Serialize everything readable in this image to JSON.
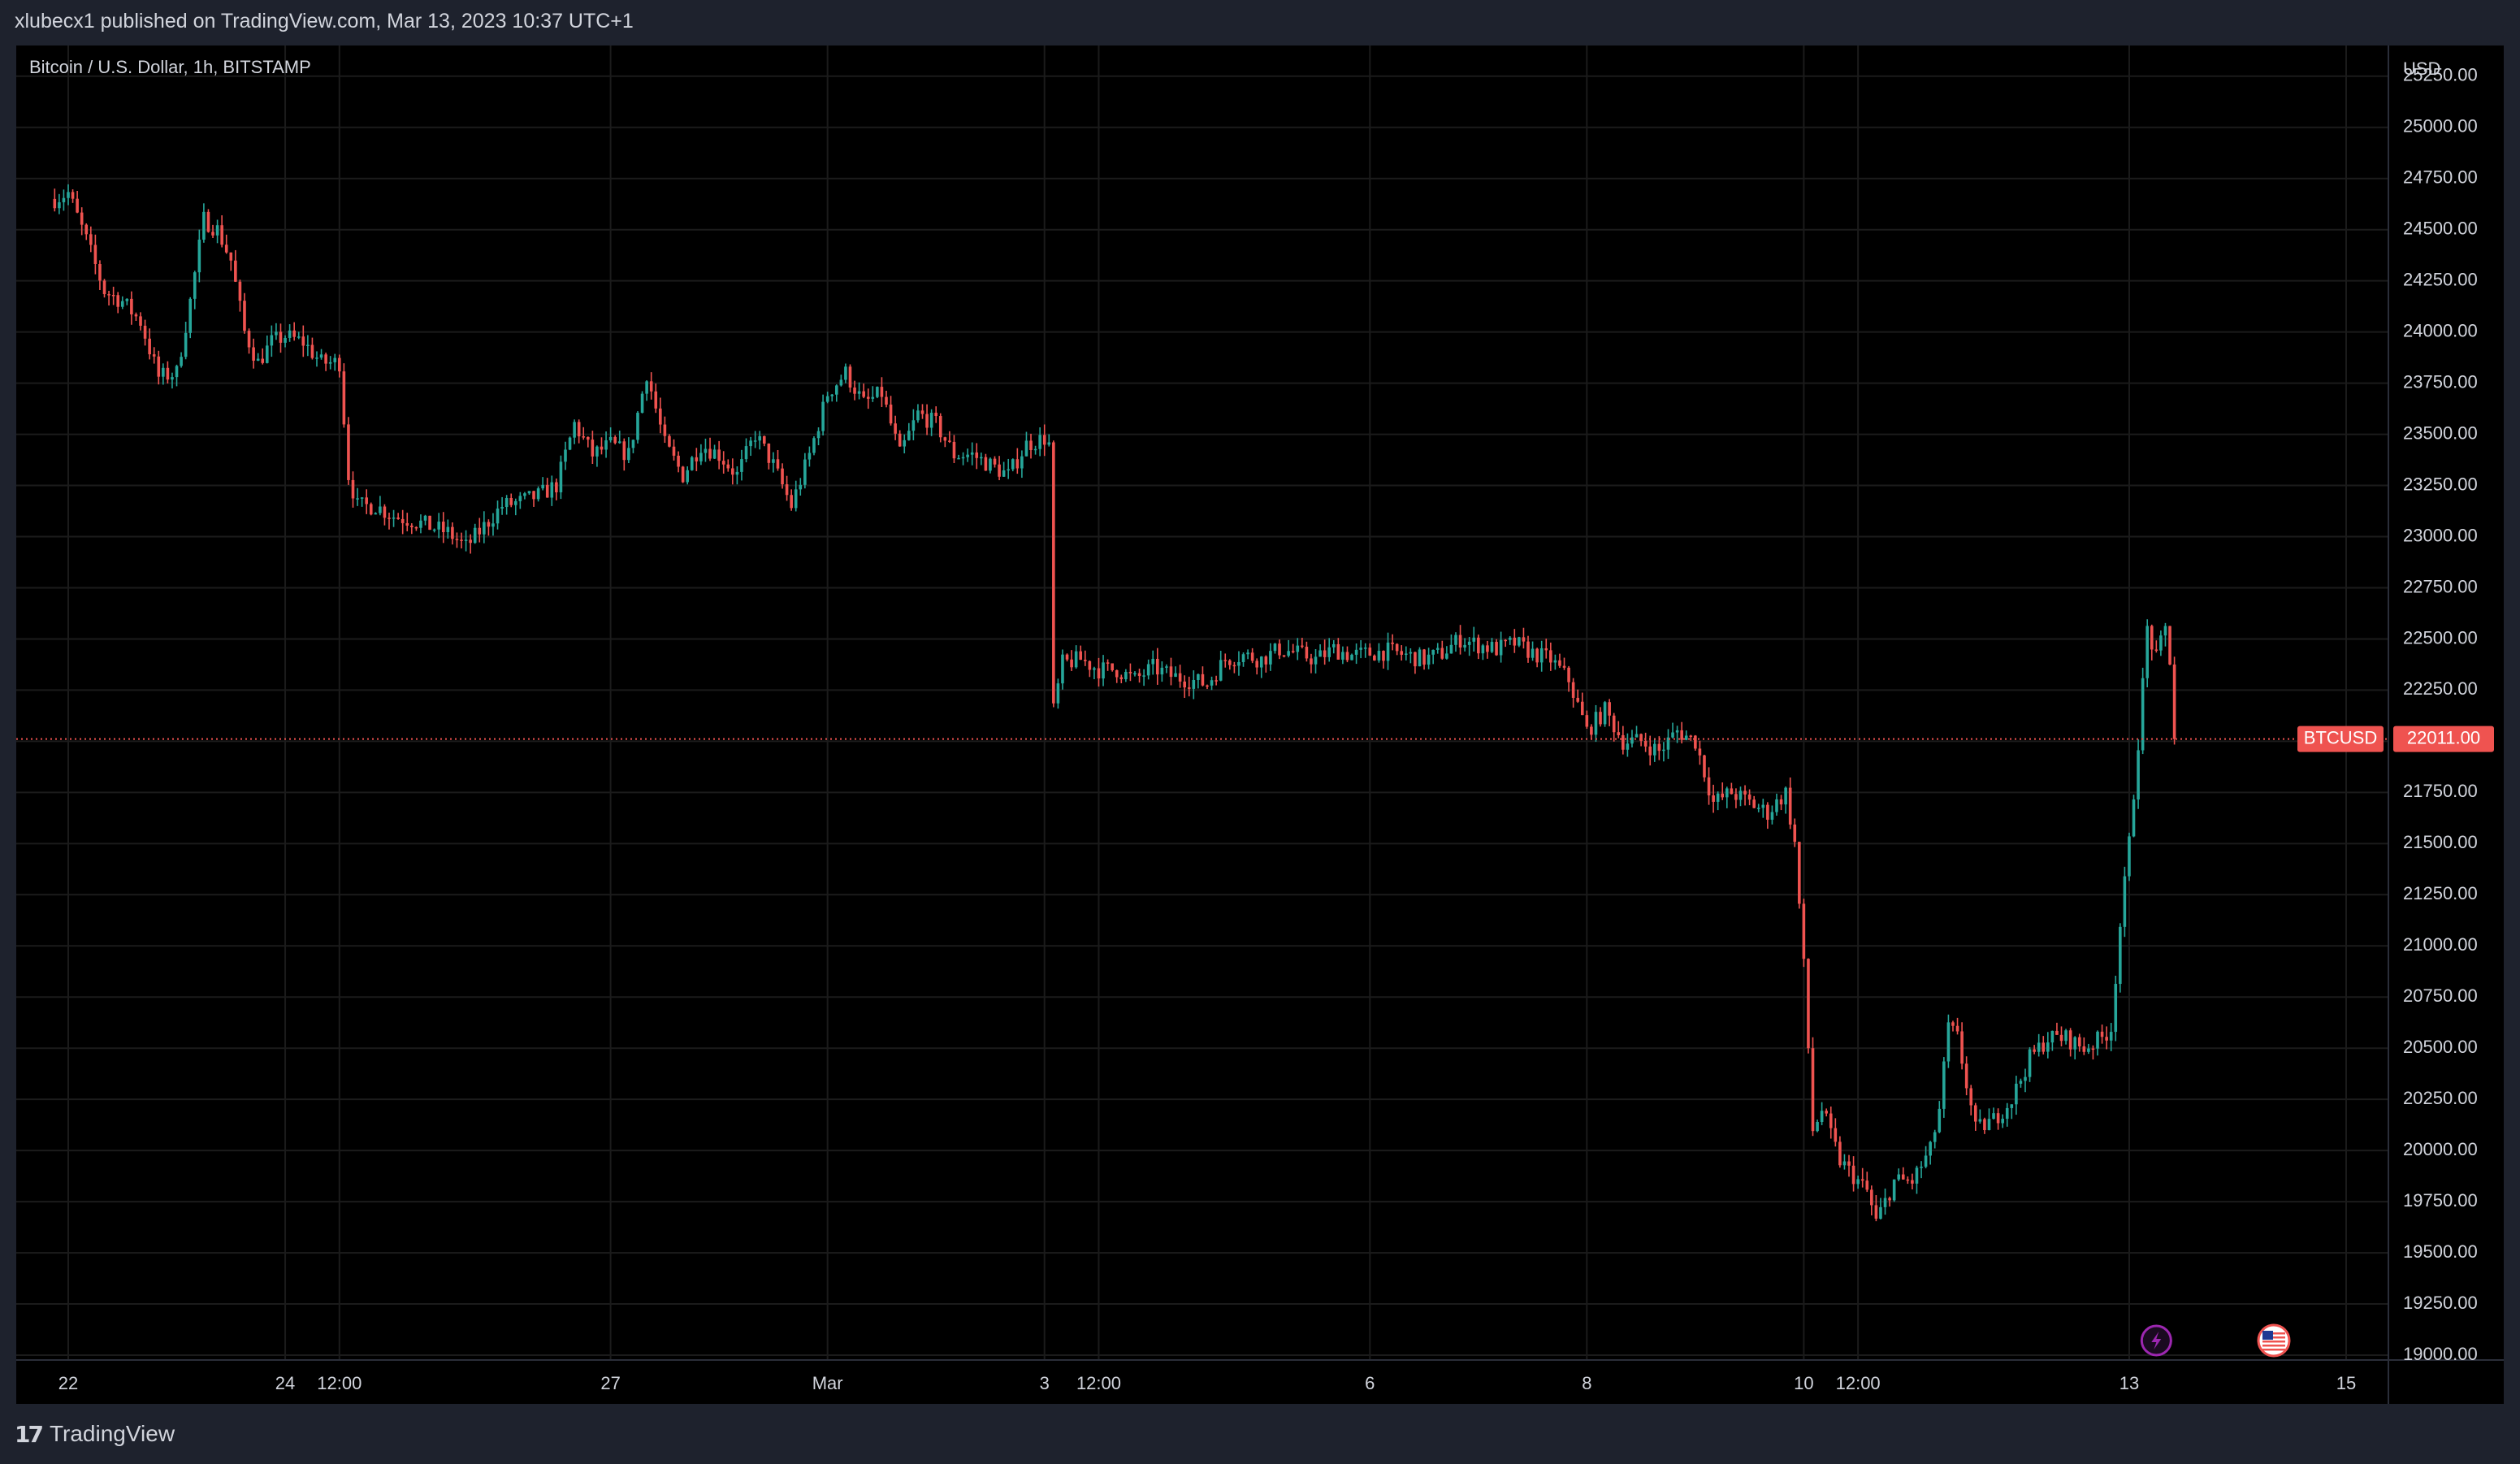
{
  "header": {
    "publish_line": "xlubecx1 published on TradingView.com, Mar 13, 2023 10:37 UTC+1"
  },
  "chart": {
    "symbol_legend": "Bitcoin / U.S. Dollar, 1h, BITSTAMP"
  },
  "footer": {
    "brand": "TradingView"
  },
  "icons": {
    "event_lightning": "lightning-icon",
    "event_flag": "us-flag-icon",
    "logo": "tradingview-logo-icon"
  },
  "colors": {
    "background": "#000000",
    "frame": "#1e222d",
    "up": "#26a69a",
    "down": "#ef5350",
    "grid": "#1b1b1b",
    "text": "#d1d4dc",
    "price_label_bg": "#ef5350",
    "event_purple": "#9c27b0"
  },
  "chart_data": {
    "type": "candlestick",
    "symbol": "BTCUSD",
    "title": "Bitcoin / U.S. Dollar, 1h, BITSTAMP",
    "ylabel": "USD",
    "ylim": [
      19000,
      25400
    ],
    "y_ticks": [
      "25250.00",
      "25000.00",
      "24750.00",
      "24500.00",
      "24250.00",
      "24000.00",
      "23750.00",
      "23500.00",
      "23250.00",
      "23000.00",
      "22750.00",
      "22500.00",
      "22250.00",
      "22000.00",
      "21750.00",
      "21500.00",
      "21250.00",
      "21000.00",
      "20750.00",
      "20500.00",
      "20250.00",
      "20000.00",
      "19750.00",
      "19500.00",
      "19250.00",
      "19000.00"
    ],
    "x_ticks": [
      {
        "label": "22",
        "x": "2023-02-22T00:00"
      },
      {
        "label": "24",
        "x": "2023-02-24T00:00"
      },
      {
        "label": "12:00",
        "x": "2023-02-24T12:00"
      },
      {
        "label": "27",
        "x": "2023-02-27T00:00"
      },
      {
        "label": "Mar",
        "x": "2023-03-01T00:00"
      },
      {
        "label": "3",
        "x": "2023-03-03T00:00"
      },
      {
        "label": "12:00",
        "x": "2023-03-03T12:00"
      },
      {
        "label": "6",
        "x": "2023-03-06T00:00"
      },
      {
        "label": "8",
        "x": "2023-03-08T00:00"
      },
      {
        "label": "10",
        "x": "2023-03-10T00:00"
      },
      {
        "label": "12:00",
        "x": "2023-03-10T12:00"
      },
      {
        "label": "13",
        "x": "2023-03-13T00:00"
      },
      {
        "label": "15",
        "x": "2023-03-15T00:00"
      }
    ],
    "last_price": 22011.0,
    "last_price_label": "22011.00",
    "symbol_label": "BTCUSD",
    "price_path": [
      [
        "2023-02-21T21:00",
        24650
      ],
      [
        "2023-02-22T00:00",
        24680
      ],
      [
        "2023-02-22T04:00",
        24450
      ],
      [
        "2023-02-22T08:00",
        24200
      ],
      [
        "2023-02-22T12:00",
        24150
      ],
      [
        "2023-02-22T16:00",
        24050
      ],
      [
        "2023-02-22T20:00",
        23780
      ],
      [
        "2023-02-23T00:00",
        23800
      ],
      [
        "2023-02-23T03:00",
        24150
      ],
      [
        "2023-02-23T06:00",
        24550
      ],
      [
        "2023-02-23T09:00",
        24500
      ],
      [
        "2023-02-23T12:00",
        24350
      ],
      [
        "2023-02-23T15:00",
        24000
      ],
      [
        "2023-02-23T18:00",
        23850
      ],
      [
        "2023-02-23T21:00",
        23950
      ],
      [
        "2023-02-24T00:00",
        23980
      ],
      [
        "2023-02-24T04:00",
        23950
      ],
      [
        "2023-02-24T08:00",
        23850
      ],
      [
        "2023-02-24T12:00",
        23850
      ],
      [
        "2023-02-24T14:00",
        23300
      ],
      [
        "2023-02-24T16:00",
        23150
      ],
      [
        "2023-02-24T20:00",
        23150
      ],
      [
        "2023-02-25T00:00",
        23100
      ],
      [
        "2023-02-25T04:00",
        23080
      ],
      [
        "2023-02-25T08:00",
        23050
      ],
      [
        "2023-02-25T12:00",
        23020
      ],
      [
        "2023-02-25T16:00",
        22950
      ],
      [
        "2023-02-25T20:00",
        23050
      ],
      [
        "2023-02-26T00:00",
        23150
      ],
      [
        "2023-02-26T04:00",
        23170
      ],
      [
        "2023-02-26T08:00",
        23200
      ],
      [
        "2023-02-26T12:00",
        23250
      ],
      [
        "2023-02-26T16:00",
        23550
      ],
      [
        "2023-02-26T20:00",
        23400
      ],
      [
        "2023-02-27T00:00",
        23450
      ],
      [
        "2023-02-27T04:00",
        23400
      ],
      [
        "2023-02-27T08:00",
        23800
      ],
      [
        "2023-02-27T12:00",
        23450
      ],
      [
        "2023-02-27T16:00",
        23300
      ],
      [
        "2023-02-27T20:00",
        23450
      ],
      [
        "2023-02-28T00:00",
        23400
      ],
      [
        "2023-02-28T04:00",
        23300
      ],
      [
        "2023-02-28T08:00",
        23500
      ],
      [
        "2023-02-28T12:00",
        23350
      ],
      [
        "2023-02-28T16:00",
        23150
      ],
      [
        "2023-02-28T20:00",
        23400
      ],
      [
        "2023-03-01T00:00",
        23700
      ],
      [
        "2023-03-01T04:00",
        23800
      ],
      [
        "2023-03-01T08:00",
        23650
      ],
      [
        "2023-03-01T12:00",
        23700
      ],
      [
        "2023-03-01T16:00",
        23400
      ],
      [
        "2023-03-01T20:00",
        23600
      ],
      [
        "2023-03-02T00:00",
        23550
      ],
      [
        "2023-03-02T04:00",
        23400
      ],
      [
        "2023-03-02T08:00",
        23400
      ],
      [
        "2023-03-02T12:00",
        23350
      ],
      [
        "2023-03-02T16:00",
        23300
      ],
      [
        "2023-03-02T20:00",
        23450
      ],
      [
        "2023-03-03T00:00",
        23480
      ],
      [
        "2023-03-03T01:00",
        23450
      ],
      [
        "2023-03-03T02:00",
        22150
      ],
      [
        "2023-03-03T04:00",
        22380
      ],
      [
        "2023-03-03T08:00",
        22400
      ],
      [
        "2023-03-03T12:00",
        22350
      ],
      [
        "2023-03-03T16:00",
        22350
      ],
      [
        "2023-03-03T20:00",
        22300
      ],
      [
        "2023-03-04T00:00",
        22360
      ],
      [
        "2023-03-04T04:00",
        22320
      ],
      [
        "2023-03-04T08:00",
        22300
      ],
      [
        "2023-03-04T12:00",
        22280
      ],
      [
        "2023-03-04T16:00",
        22400
      ],
      [
        "2023-03-04T20:00",
        22420
      ],
      [
        "2023-03-05T00:00",
        22400
      ],
      [
        "2023-03-05T04:00",
        22450
      ],
      [
        "2023-03-05T08:00",
        22430
      ],
      [
        "2023-03-05T12:00",
        22400
      ],
      [
        "2023-03-05T16:00",
        22450
      ],
      [
        "2023-03-05T20:00",
        22420
      ],
      [
        "2023-03-06T00:00",
        22430
      ],
      [
        "2023-03-06T04:00",
        22440
      ],
      [
        "2023-03-06T08:00",
        22420
      ],
      [
        "2023-03-06T12:00",
        22400
      ],
      [
        "2023-03-06T16:00",
        22430
      ],
      [
        "2023-03-06T20:00",
        22500
      ],
      [
        "2023-03-07T00:00",
        22470
      ],
      [
        "2023-03-07T04:00",
        22450
      ],
      [
        "2023-03-07T08:00",
        22480
      ],
      [
        "2023-03-07T12:00",
        22430
      ],
      [
        "2023-03-07T16:00",
        22400
      ],
      [
        "2023-03-07T20:00",
        22300
      ],
      [
        "2023-03-08T00:00",
        22050
      ],
      [
        "2023-03-08T04:00",
        22150
      ],
      [
        "2023-03-08T08:00",
        22000
      ],
      [
        "2023-03-08T12:00",
        22000
      ],
      [
        "2023-03-08T16:00",
        21950
      ],
      [
        "2023-03-08T20:00",
        22050
      ],
      [
        "2023-03-09T00:00",
        22000
      ],
      [
        "2023-03-09T04:00",
        21700
      ],
      [
        "2023-03-09T08:00",
        21750
      ],
      [
        "2023-03-09T12:00",
        21700
      ],
      [
        "2023-03-09T16:00",
        21650
      ],
      [
        "2023-03-09T20:00",
        21750
      ],
      [
        "2023-03-09T22:00",
        21500
      ],
      [
        "2023-03-10T00:00",
        20900
      ],
      [
        "2023-03-10T02:00",
        20100
      ],
      [
        "2023-03-10T04:00",
        20200
      ],
      [
        "2023-03-10T08:00",
        19950
      ],
      [
        "2023-03-10T12:00",
        19850
      ],
      [
        "2023-03-10T14:00",
        19800
      ],
      [
        "2023-03-10T16:00",
        19650
      ],
      [
        "2023-03-10T20:00",
        19850
      ],
      [
        "2023-03-11T00:00",
        19850
      ],
      [
        "2023-03-11T04:00",
        20000
      ],
      [
        "2023-03-11T06:00",
        20200
      ],
      [
        "2023-03-11T08:00",
        20600
      ],
      [
        "2023-03-11T10:00",
        20550
      ],
      [
        "2023-03-11T14:00",
        20100
      ],
      [
        "2023-03-11T18:00",
        20150
      ],
      [
        "2023-03-11T22:00",
        20250
      ],
      [
        "2023-03-12T02:00",
        20450
      ],
      [
        "2023-03-12T06:00",
        20550
      ],
      [
        "2023-03-12T10:00",
        20550
      ],
      [
        "2023-03-12T14:00",
        20500
      ],
      [
        "2023-03-12T18:00",
        20550
      ],
      [
        "2023-03-12T20:00",
        20600
      ],
      [
        "2023-03-12T22:00",
        21100
      ],
      [
        "2023-03-13T00:00",
        21500
      ],
      [
        "2023-03-13T02:00",
        22000
      ],
      [
        "2023-03-13T04:00",
        22550
      ],
      [
        "2023-03-13T06:00",
        22400
      ],
      [
        "2023-03-13T08:00",
        22550
      ],
      [
        "2023-03-13T09:00",
        22400
      ],
      [
        "2023-03-13T10:00",
        22011
      ]
    ],
    "events": [
      {
        "type": "lightning",
        "x": "2023-03-13T06:00"
      },
      {
        "type": "us-flag",
        "x": "2023-03-14T08:00"
      }
    ]
  }
}
